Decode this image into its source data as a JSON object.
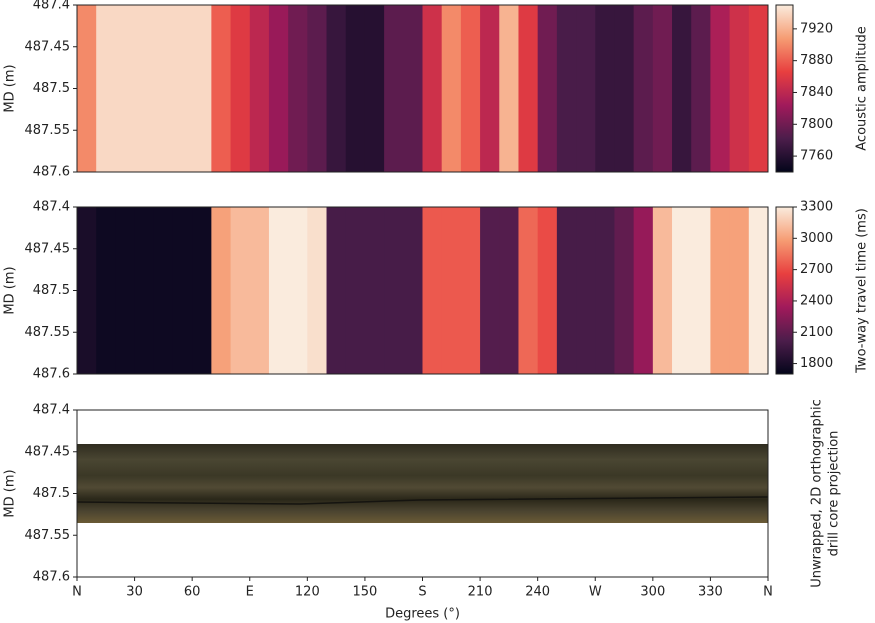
{
  "chart_data": [
    {
      "type": "heatmap",
      "ylabel": "MD (m)",
      "colorbar_label": "Acoustic amplitude",
      "xlim": [
        0,
        360
      ],
      "ylim": [
        487.6,
        487.4
      ],
      "yticks": [
        487.4,
        487.45,
        487.5,
        487.55,
        487.6
      ],
      "xedges": [
        0,
        10,
        20,
        30,
        40,
        50,
        60,
        70,
        80,
        90,
        100,
        110,
        120,
        130,
        140,
        150,
        160,
        170,
        180,
        190,
        200,
        210,
        220,
        230,
        240,
        250,
        260,
        270,
        280,
        290,
        300,
        310,
        320,
        330,
        340,
        350,
        360
      ],
      "values": [
        7900,
        7940,
        7940,
        7940,
        7940,
        7940,
        7940,
        7880,
        7860,
        7840,
        7820,
        7800,
        7790,
        7770,
        7760,
        7760,
        7790,
        7790,
        7850,
        7900,
        7880,
        7840,
        7920,
        7860,
        7800,
        7780,
        7780,
        7770,
        7770,
        7790,
        7800,
        7770,
        7790,
        7830,
        7850,
        7860
      ],
      "clim": [
        7740,
        7950
      ],
      "cticks": [
        7760,
        7800,
        7840,
        7880,
        7920
      ],
      "colormap": [
        "#03051a",
        "#4c1d4b",
        "#a11a5b",
        "#e83f3f",
        "#f69c73",
        "#faebdd"
      ]
    },
    {
      "type": "heatmap",
      "ylabel": "MD (m)",
      "colorbar_label": "Two-way travel time (ms)",
      "xlim": [
        0,
        360
      ],
      "ylim": [
        487.6,
        487.4
      ],
      "yticks": [
        487.4,
        487.45,
        487.5,
        487.55,
        487.6
      ],
      "xedges": [
        0,
        10,
        20,
        30,
        40,
        50,
        60,
        70,
        80,
        90,
        100,
        110,
        120,
        130,
        140,
        150,
        160,
        170,
        180,
        190,
        200,
        210,
        220,
        230,
        240,
        250,
        260,
        270,
        280,
        290,
        300,
        310,
        320,
        330,
        340,
        350,
        360
      ],
      "values": [
        1800,
        1750,
        1750,
        1750,
        1750,
        1750,
        1750,
        3000,
        3100,
        3100,
        3300,
        3300,
        3250,
        2000,
        2000,
        2000,
        2000,
        2000,
        2750,
        2750,
        2750,
        2050,
        2050,
        2800,
        2700,
        2000,
        2000,
        2000,
        2100,
        2300,
        3100,
        3300,
        3300,
        3000,
        3000,
        3300
      ],
      "clim": [
        1700,
        3300
      ],
      "cticks": [
        1800,
        2100,
        2400,
        2700,
        3000,
        3300
      ],
      "colormap": [
        "#03051a",
        "#4c1d4b",
        "#a11a5b",
        "#e83f3f",
        "#f69c73",
        "#faebdd"
      ]
    },
    {
      "type": "image",
      "ylabel": "MD (m)",
      "xlabel": "Degrees (°)",
      "side_label": [
        "Unwrapped, 2D orthographic",
        "drill core projection"
      ],
      "xlim": [
        0,
        360
      ],
      "ylim": [
        487.6,
        487.4
      ],
      "yticks": [
        487.4,
        487.45,
        487.5,
        487.55,
        487.6
      ],
      "xticks": [
        {
          "value": 0,
          "label": "N"
        },
        30,
        60,
        {
          "value": 90,
          "label": "E"
        },
        120,
        150,
        {
          "value": 180,
          "label": "S"
        },
        210,
        240,
        {
          "value": 270,
          "label": "W"
        },
        300,
        330,
        {
          "value": 360,
          "label": "N"
        }
      ]
    }
  ]
}
